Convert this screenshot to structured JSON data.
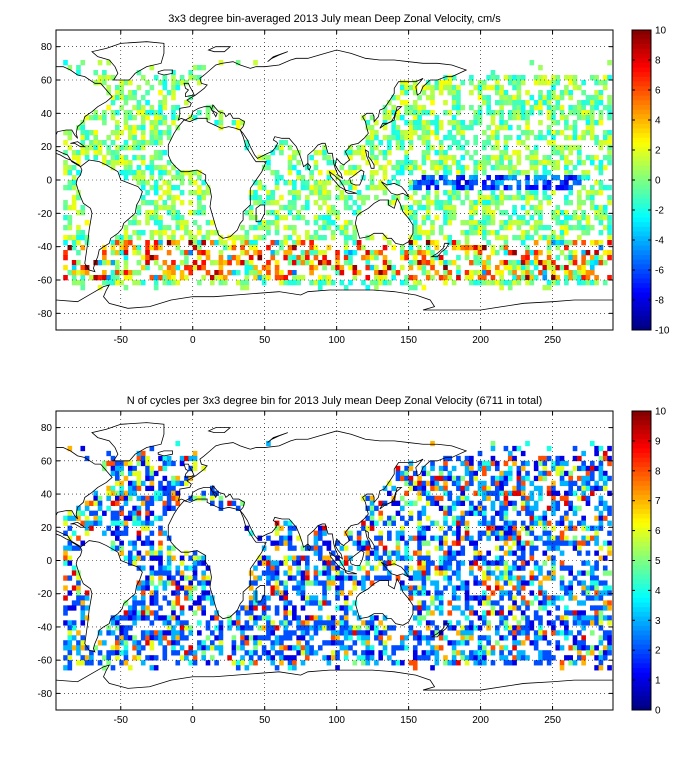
{
  "chart_data": [
    {
      "type": "heatmap",
      "title": "3x3 degree bin-averaged 2013 July mean Deep Zonal Velocity, cm/s",
      "xlabel": "",
      "ylabel": "",
      "xlim": [
        -95,
        292
      ],
      "ylim": [
        -90,
        90
      ],
      "x_ticks": [
        -50,
        0,
        50,
        100,
        150,
        200,
        250
      ],
      "y_ticks": [
        80,
        60,
        40,
        20,
        0,
        -20,
        -40,
        -60,
        -80
      ],
      "grid": true,
      "bin_size_deg": 3,
      "colorbar": {
        "min": -10,
        "max": 10,
        "ticks": [
          10,
          8,
          6,
          4,
          2,
          0,
          -2,
          -4,
          -6,
          -8,
          -10
        ],
        "colormap": "jet",
        "position": "right"
      }
    },
    {
      "type": "heatmap",
      "title": "N of cycles per 3x3 degree bin for 2013 July mean Deep Zonal Velocity (6711 in total)",
      "xlabel": "",
      "ylabel": "",
      "xlim": [
        -95,
        292
      ],
      "ylim": [
        -90,
        90
      ],
      "x_ticks": [
        -50,
        0,
        50,
        100,
        150,
        200,
        250
      ],
      "y_ticks": [
        80,
        60,
        40,
        20,
        0,
        -20,
        -40,
        -60,
        -80
      ],
      "grid": true,
      "bin_size_deg": 3,
      "total_cycles": 6711,
      "colorbar": {
        "min": 0,
        "max": 10,
        "ticks": [
          10,
          9,
          8,
          7,
          6,
          5,
          4,
          3,
          2,
          1,
          0
        ],
        "colormap": "jet",
        "position": "right"
      }
    }
  ]
}
